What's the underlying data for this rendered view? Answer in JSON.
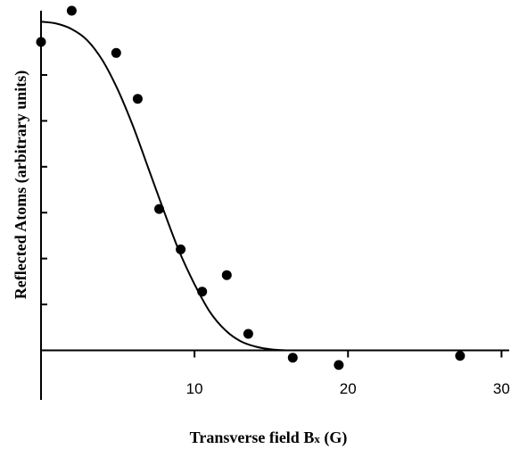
{
  "chart_data": {
    "type": "scatter",
    "title": "",
    "xlabel": "Transverse field Bx (G)",
    "xlabel_main": "Transverse field B",
    "xlabel_sub": "x",
    "xlabel_unit": " (G)",
    "ylabel": "Reflected Atoms (arbitrary units)",
    "xlim": [
      0,
      30.5
    ],
    "ylim": [
      -0.27,
      1.85
    ],
    "x_ticks": [
      10,
      20,
      30
    ],
    "x_tick_labels": [
      "10",
      "20",
      "30"
    ],
    "y_ticks": [
      0,
      0.25,
      0.5,
      0.75,
      1.0,
      1.25,
      1.5
    ],
    "grid": false,
    "legend": "none",
    "series": [
      {
        "kind": "points",
        "x": [
          0.0,
          2.0,
          4.9,
          6.3,
          7.7,
          9.1,
          10.5,
          12.1,
          13.5,
          16.4,
          19.4,
          27.3
        ],
        "y": [
          1.68,
          1.85,
          1.62,
          1.37,
          0.77,
          0.55,
          0.32,
          0.41,
          0.09,
          -0.04,
          -0.08,
          -0.03
        ]
      },
      {
        "kind": "fit",
        "x": [
          0,
          1,
          2,
          3,
          4,
          5,
          6,
          7,
          8,
          9,
          10,
          11,
          12,
          13,
          14,
          15,
          16,
          17,
          18,
          19,
          20,
          22,
          25,
          30.5
        ],
        "y": [
          1.79,
          1.78,
          1.75,
          1.69,
          1.58,
          1.42,
          1.22,
          0.99,
          0.76,
          0.54,
          0.36,
          0.21,
          0.11,
          0.05,
          0.02,
          0.005,
          0.0,
          0.0,
          0.0,
          0.0,
          0.0,
          0.0,
          0.0,
          0.0
        ]
      }
    ]
  }
}
